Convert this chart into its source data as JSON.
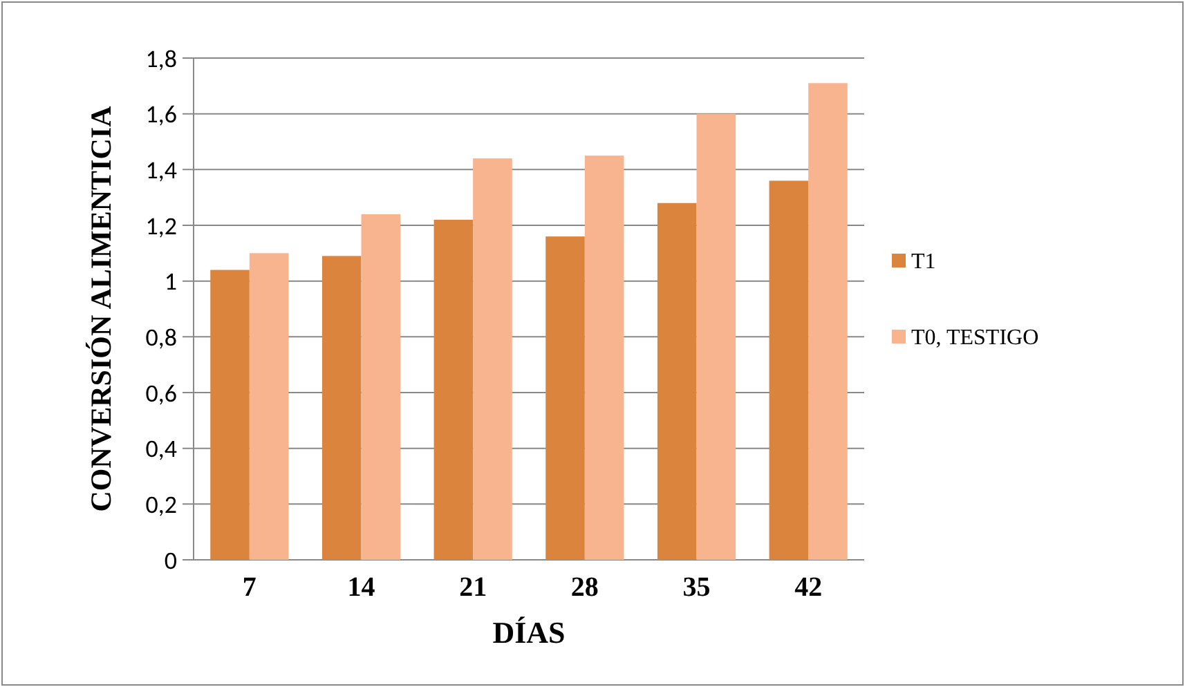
{
  "chart_data": {
    "type": "bar",
    "xlabel": "DÍAS",
    "ylabel": "CONVERSIÓN ALIMENTICIA",
    "categories": [
      "7",
      "14",
      "21",
      "28",
      "35",
      "42"
    ],
    "series": [
      {
        "name": "T1",
        "color": "#db843d",
        "values": [
          1.04,
          1.09,
          1.22,
          1.16,
          1.28,
          1.36
        ]
      },
      {
        "name": "T0, TESTIGO",
        "color": "#f7b48e",
        "values": [
          1.1,
          1.24,
          1.44,
          1.45,
          1.6,
          1.71
        ]
      }
    ],
    "ylim": [
      0,
      1.8
    ],
    "yticks": [
      {
        "value": 0,
        "label": "0"
      },
      {
        "value": 0.2,
        "label": "0,2"
      },
      {
        "value": 0.4,
        "label": "0,4"
      },
      {
        "value": 0.6,
        "label": "0,6"
      },
      {
        "value": 0.8,
        "label": "0,8"
      },
      {
        "value": 1,
        "label": "1"
      },
      {
        "value": 1.2,
        "label": "1,2"
      },
      {
        "value": 1.4,
        "label": "1,4"
      },
      {
        "value": 1.6,
        "label": "1,6"
      },
      {
        "value": 1.8,
        "label": "1,8"
      }
    ],
    "grid": "y",
    "legend": "right"
  }
}
